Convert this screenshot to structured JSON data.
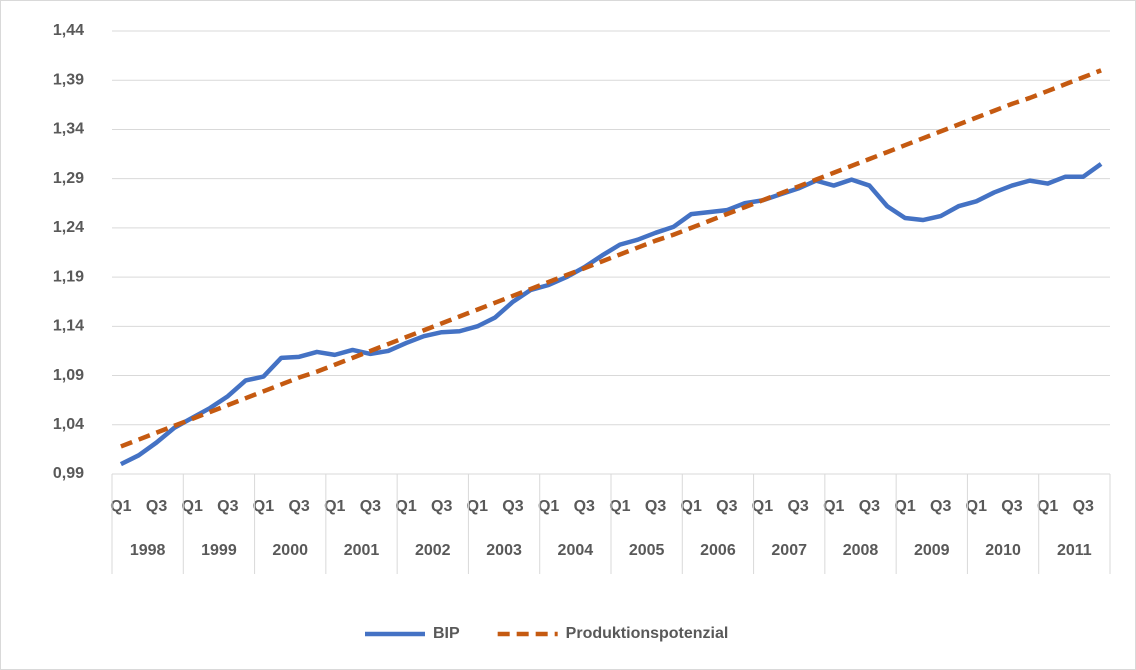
{
  "chart_data": {
    "type": "line",
    "categories": [
      "Q1",
      null,
      "Q3",
      null,
      "Q1",
      null,
      "Q3",
      null,
      "Q1",
      null,
      "Q3",
      null,
      "Q1",
      null,
      "Q3",
      null,
      "Q1",
      null,
      "Q3",
      null,
      "Q1",
      null,
      "Q3",
      null,
      "Q1",
      null,
      "Q3",
      null,
      "Q1",
      null,
      "Q3",
      null,
      "Q1",
      null,
      "Q3",
      null,
      "Q1",
      null,
      "Q3",
      null,
      "Q1",
      null,
      "Q3",
      null,
      "Q1",
      null,
      "Q3",
      null,
      "Q1",
      null,
      "Q3",
      null,
      "Q1",
      null,
      "Q3",
      null
    ],
    "groups": [
      "1998",
      "1999",
      "2000",
      "2001",
      "2002",
      "2003",
      "2004",
      "2005",
      "2006",
      "2007",
      "2008",
      "2009",
      "2010",
      "2011"
    ],
    "series": [
      {
        "name": "BIP",
        "color": "#4472c4",
        "dashed": false,
        "values": [
          1.0,
          1.009,
          1.022,
          1.037,
          1.047,
          1.057,
          1.069,
          1.085,
          1.089,
          1.108,
          1.109,
          1.114,
          1.111,
          1.116,
          1.112,
          1.115,
          1.123,
          1.13,
          1.134,
          1.135,
          1.14,
          1.149,
          1.165,
          1.177,
          1.182,
          1.19,
          1.2,
          1.212,
          1.223,
          1.228,
          1.235,
          1.241,
          1.254,
          1.256,
          1.258,
          1.265,
          1.268,
          1.274,
          1.28,
          1.288,
          1.283,
          1.289,
          1.283,
          1.262,
          1.25,
          1.248,
          1.252,
          1.262,
          1.267,
          1.276,
          1.283,
          1.288,
          1.285,
          1.292,
          1.292,
          1.305
        ]
      },
      {
        "name": "Produktionspotenzial",
        "color": "#c55a11",
        "dashed": true,
        "values": [
          1.018,
          1.025,
          1.032,
          1.039,
          1.046,
          1.053,
          1.06,
          1.067,
          1.074,
          1.081,
          1.088,
          1.094,
          1.101,
          1.108,
          1.115,
          1.122,
          1.129,
          1.136,
          1.143,
          1.15,
          1.157,
          1.164,
          1.171,
          1.178,
          1.185,
          1.192,
          1.199,
          1.206,
          1.213,
          1.22,
          1.227,
          1.233,
          1.24,
          1.247,
          1.254,
          1.261,
          1.268,
          1.275,
          1.282,
          1.289,
          1.296,
          1.303,
          1.31,
          1.317,
          1.324,
          1.331,
          1.338,
          1.345,
          1.352,
          1.359,
          1.366,
          1.372,
          1.379,
          1.386,
          1.393,
          1.4
        ]
      }
    ],
    "ylim": [
      0.99,
      1.44
    ],
    "yticks": [
      {
        "value": 0.99,
        "label": "0,99"
      },
      {
        "value": 1.04,
        "label": "1,04"
      },
      {
        "value": 1.09,
        "label": "1,09"
      },
      {
        "value": 1.14,
        "label": "1,14"
      },
      {
        "value": 1.19,
        "label": "1,19"
      },
      {
        "value": 1.24,
        "label": "1,24"
      },
      {
        "value": 1.29,
        "label": "1,29"
      },
      {
        "value": 1.34,
        "label": "1,34"
      },
      {
        "value": 1.39,
        "label": "1,39"
      },
      {
        "value": 1.44,
        "label": "1,44"
      }
    ],
    "grid": true,
    "legend": "bottom"
  }
}
